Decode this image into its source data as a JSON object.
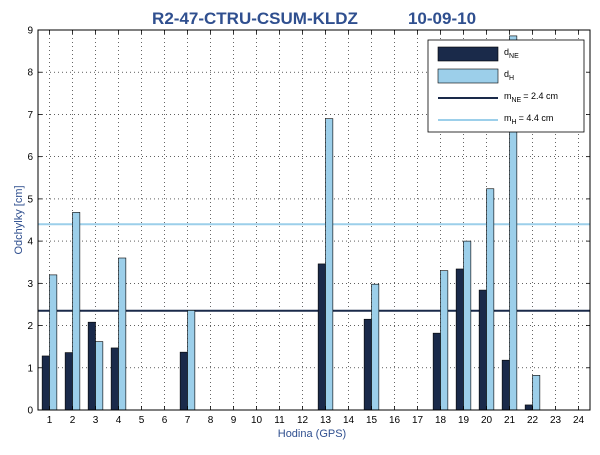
{
  "chart_data": {
    "type": "bar",
    "title_left": "R2-47-CTRU-CSUM-KLDZ",
    "title_right": "10-09-10",
    "xlabel": "Hodina (GPS)",
    "ylabel": "Odchylky [cm]",
    "ylim": [
      0,
      9
    ],
    "xlim": [
      0.5,
      24.5
    ],
    "yticks": [
      0,
      1,
      2,
      3,
      4,
      5,
      6,
      7,
      8,
      9
    ],
    "categories": [
      "1",
      "2",
      "3",
      "4",
      "5",
      "6",
      "7",
      "8",
      "9",
      "10",
      "11",
      "12",
      "13",
      "14",
      "15",
      "16",
      "17",
      "18",
      "19",
      "20",
      "21",
      "22",
      "23",
      "24"
    ],
    "grid": true,
    "legend_position": "top-right",
    "series": [
      {
        "name": "d_NE",
        "color": "#1a2a4a",
        "values": [
          1.28,
          1.36,
          2.08,
          1.47,
          null,
          null,
          1.37,
          null,
          null,
          null,
          null,
          null,
          3.46,
          null,
          2.15,
          null,
          null,
          1.82,
          3.34,
          2.84,
          1.18,
          0.12,
          null,
          null
        ]
      },
      {
        "name": "d_H",
        "color": "#9ccfea",
        "values": [
          3.2,
          4.68,
          1.62,
          3.6,
          null,
          null,
          2.36,
          null,
          null,
          null,
          null,
          null,
          6.9,
          null,
          2.98,
          null,
          null,
          3.3,
          4.0,
          5.24,
          8.86,
          0.82,
          null,
          null
        ]
      }
    ],
    "reference_lines": [
      {
        "name": "m_NE",
        "value": 2.35,
        "label_value": "= 2.4 cm",
        "color": "#1a2a4a"
      },
      {
        "name": "m_H",
        "value": 4.4,
        "label_value": "= 4.4 cm",
        "color": "#9ccfea"
      }
    ],
    "legend": [
      {
        "kind": "bar",
        "base": "d",
        "sub": "NE",
        "suffix": "",
        "color": "#1a2a4a"
      },
      {
        "kind": "bar",
        "base": "d",
        "sub": "H",
        "suffix": "",
        "color": "#9ccfea"
      },
      {
        "kind": "line",
        "base": "m",
        "sub": "NE",
        "suffix": "= 2.4 cm",
        "color": "#1a2a4a"
      },
      {
        "kind": "line",
        "base": "m",
        "sub": "H",
        "suffix": "= 4.4 cm",
        "color": "#9ccfea"
      }
    ]
  }
}
